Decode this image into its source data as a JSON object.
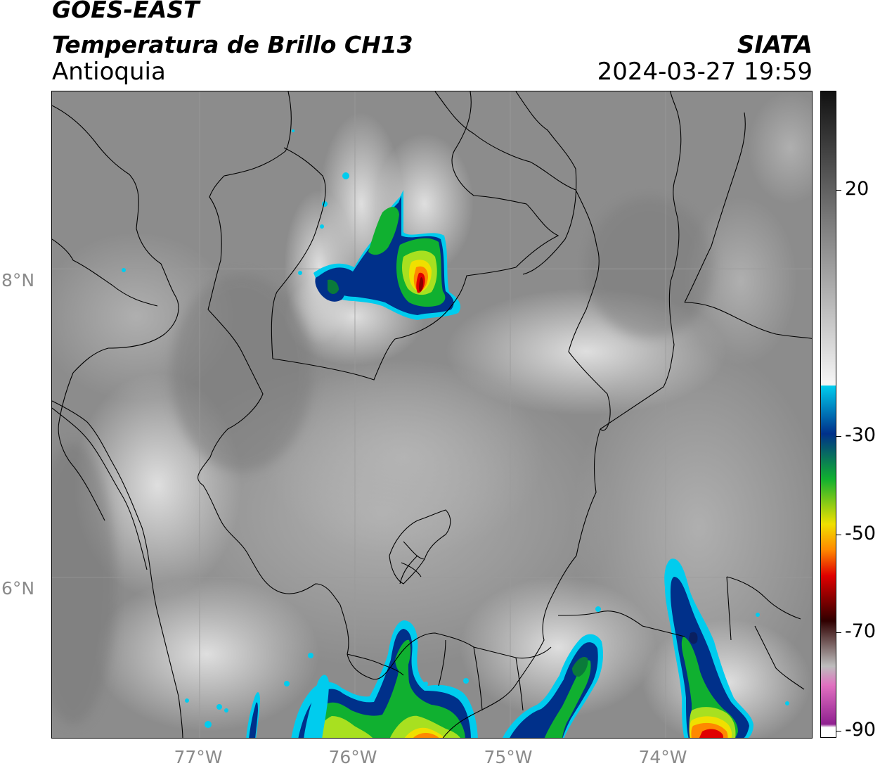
{
  "header": {
    "satellite": "GOES-EAST",
    "product": "Temperatura de Brillo CH13",
    "region": "Antioquia",
    "organization": "SIATA",
    "datetime": "2024-03-27 19:59"
  },
  "map": {
    "extent": {
      "lon_min": -77.95,
      "lon_max": -73.05,
      "lat_min": 4.95,
      "lat_max": 9.15
    },
    "latitude_labels": [
      {
        "value": 8,
        "label": "8°N"
      },
      {
        "value": 6,
        "label": "6°N"
      }
    ],
    "longitude_labels": [
      {
        "value": -77,
        "label": "77°W"
      },
      {
        "value": -76,
        "label": "76°W"
      },
      {
        "value": -75,
        "label": "75°W"
      },
      {
        "value": -74,
        "label": "74°W"
      }
    ],
    "gridlines": true
  },
  "colorbar": {
    "ticks": [
      {
        "value": 20,
        "label": "20"
      },
      {
        "value": -30,
        "label": "-30"
      },
      {
        "value": -50,
        "label": "-50"
      },
      {
        "value": -70,
        "label": "-70"
      },
      {
        "value": -90,
        "label": "-90"
      }
    ],
    "colors": {
      "warm_top": "#111111",
      "warm_mid": "#7a7a7a",
      "cloud_white": "#f4f4f4",
      "cyan": "#00ccee",
      "blue": "#00308a",
      "green": "#10b030",
      "yellow": "#f0e000",
      "orange": "#ff8800",
      "red": "#e00000",
      "dark_red": "#300000",
      "pink": "#e070c0",
      "purple": "#902090"
    }
  }
}
